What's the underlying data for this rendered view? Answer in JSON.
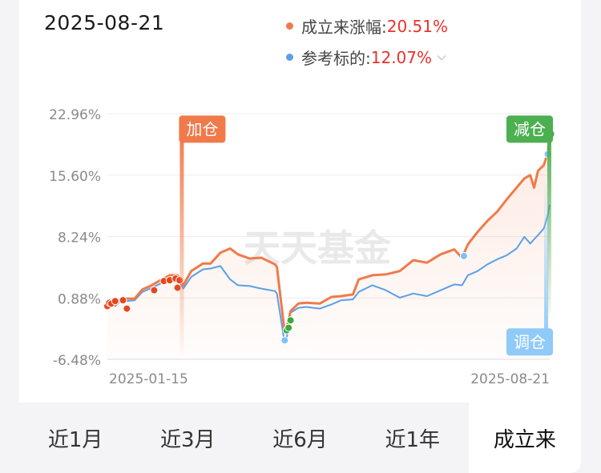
{
  "date": "2025-08-21",
  "legend": [
    {
      "label": "成立来涨幅:",
      "value": "20.51%",
      "color": "#f07a4a"
    },
    {
      "label": "参考标的:",
      "value": "12.07%",
      "color": "#5ba0e6"
    }
  ],
  "tabs": [
    "近1月",
    "近3月",
    "近6月",
    "近1年",
    "成立来"
  ],
  "active_tab": 4,
  "watermark": "天天基金",
  "colors": {
    "fund": "#f07a4a",
    "benchmark": "#5ba0e6",
    "add": "#f07a4a",
    "reduce": "#4caf50",
    "adjust": "#90caf9",
    "value_text": "#e8322d"
  },
  "chart_data": {
    "type": "line",
    "x_start": "2025-01-06",
    "x_end": "2025-08-21",
    "x_tick_labels": [
      "2025-01-15",
      "2025-08-21"
    ],
    "y_ticks": [
      "22.96%",
      "15.60%",
      "8.24%",
      "0.88%",
      "-6.48%"
    ],
    "ylim": [
      -6.48,
      22.96
    ],
    "grid": true,
    "series": [
      {
        "name": "成立来涨幅",
        "color": "#f07a4a",
        "points": [
          [
            "2025-01-06",
            -0.2
          ],
          [
            "2025-01-08",
            0.3
          ],
          [
            "2025-01-10",
            0.0
          ],
          [
            "2025-01-13",
            0.8
          ],
          [
            "2025-01-16",
            0.8
          ],
          [
            "2025-01-20",
            0.8
          ],
          [
            "2025-01-24",
            1.9
          ],
          [
            "2025-01-28",
            2.3
          ],
          [
            "2025-02-03",
            3.1
          ],
          [
            "2025-02-07",
            3.6
          ],
          [
            "2025-02-11",
            3.6
          ],
          [
            "2025-02-14",
            2.4
          ],
          [
            "2025-02-18",
            4.1
          ],
          [
            "2025-02-24",
            5.0
          ],
          [
            "2025-02-28",
            5.0
          ],
          [
            "2025-03-05",
            6.3
          ],
          [
            "2025-03-10",
            6.8
          ],
          [
            "2025-03-14",
            6.1
          ],
          [
            "2025-03-20",
            5.6
          ],
          [
            "2025-03-26",
            5.7
          ],
          [
            "2025-04-02",
            4.9
          ],
          [
            "2025-04-03",
            4.6
          ],
          [
            "2025-04-07",
            -3.3
          ],
          [
            "2025-04-08",
            -2.8
          ],
          [
            "2025-04-10",
            -0.7
          ],
          [
            "2025-04-14",
            0.2
          ],
          [
            "2025-04-18",
            0.3
          ],
          [
            "2025-04-25",
            0.2
          ],
          [
            "2025-05-01",
            1.0
          ],
          [
            "2025-05-06",
            1.1
          ],
          [
            "2025-05-12",
            1.3
          ],
          [
            "2025-05-15",
            3.1
          ],
          [
            "2025-05-22",
            3.6
          ],
          [
            "2025-05-29",
            3.7
          ],
          [
            "2025-06-05",
            4.1
          ],
          [
            "2025-06-12",
            5.4
          ],
          [
            "2025-06-19",
            5.1
          ],
          [
            "2025-06-26",
            6.1
          ],
          [
            "2025-07-03",
            6.7
          ],
          [
            "2025-07-07",
            5.7
          ],
          [
            "2025-07-10",
            7.3
          ],
          [
            "2025-07-15",
            8.8
          ],
          [
            "2025-07-20",
            10.1
          ],
          [
            "2025-07-25",
            11.2
          ],
          [
            "2025-07-30",
            12.7
          ],
          [
            "2025-08-04",
            14.1
          ],
          [
            "2025-08-08",
            15.2
          ],
          [
            "2025-08-11",
            15.6
          ],
          [
            "2025-08-13",
            14.1
          ],
          [
            "2025-08-15",
            16.1
          ],
          [
            "2025-08-18",
            16.8
          ],
          [
            "2025-08-20",
            18.3
          ],
          [
            "2025-08-21",
            20.51
          ]
        ]
      },
      {
        "name": "参考标的",
        "color": "#5ba0e6",
        "points": [
          [
            "2025-01-06",
            -0.2
          ],
          [
            "2025-01-08",
            0.2
          ],
          [
            "2025-01-10",
            -0.1
          ],
          [
            "2025-01-13",
            0.6
          ],
          [
            "2025-01-16",
            0.5
          ],
          [
            "2025-01-20",
            0.6
          ],
          [
            "2025-01-24",
            1.6
          ],
          [
            "2025-01-28",
            2.0
          ],
          [
            "2025-02-03",
            2.7
          ],
          [
            "2025-02-07",
            3.3
          ],
          [
            "2025-02-11",
            3.3
          ],
          [
            "2025-02-14",
            2.0
          ],
          [
            "2025-02-18",
            3.4
          ],
          [
            "2025-02-24",
            4.3
          ],
          [
            "2025-02-28",
            4.4
          ],
          [
            "2025-03-05",
            4.7
          ],
          [
            "2025-03-10",
            3.1
          ],
          [
            "2025-03-14",
            2.4
          ],
          [
            "2025-03-20",
            2.3
          ],
          [
            "2025-03-26",
            2.0
          ],
          [
            "2025-04-02",
            1.7
          ],
          [
            "2025-04-03",
            1.4
          ],
          [
            "2025-04-07",
            -4.6
          ],
          [
            "2025-04-08",
            -4.0
          ],
          [
            "2025-04-10",
            -0.9
          ],
          [
            "2025-04-14",
            -0.3
          ],
          [
            "2025-04-18",
            -0.2
          ],
          [
            "2025-04-25",
            -0.4
          ],
          [
            "2025-05-01",
            0.1
          ],
          [
            "2025-05-06",
            0.6
          ],
          [
            "2025-05-12",
            0.7
          ],
          [
            "2025-05-15",
            1.6
          ],
          [
            "2025-05-22",
            2.4
          ],
          [
            "2025-05-29",
            1.8
          ],
          [
            "2025-06-05",
            0.9
          ],
          [
            "2025-06-12",
            1.4
          ],
          [
            "2025-06-19",
            1.1
          ],
          [
            "2025-06-26",
            1.8
          ],
          [
            "2025-07-03",
            2.5
          ],
          [
            "2025-07-07",
            2.4
          ],
          [
            "2025-07-10",
            3.6
          ],
          [
            "2025-07-15",
            4.1
          ],
          [
            "2025-07-20",
            4.9
          ],
          [
            "2025-07-25",
            5.5
          ],
          [
            "2025-07-30",
            6.0
          ],
          [
            "2025-08-04",
            6.8
          ],
          [
            "2025-08-08",
            8.2
          ],
          [
            "2025-08-11",
            7.4
          ],
          [
            "2025-08-13",
            7.9
          ],
          [
            "2025-08-15",
            8.4
          ],
          [
            "2025-08-18",
            9.2
          ],
          [
            "2025-08-20",
            10.8
          ],
          [
            "2025-08-21",
            12.07
          ]
        ]
      }
    ],
    "markers": [
      {
        "kind": "add",
        "color": "#e8461e",
        "points": [
          [
            "2025-01-06",
            -0.1
          ],
          [
            "2025-01-07",
            0.3
          ],
          [
            "2025-01-08",
            0.2
          ],
          [
            "2025-01-10",
            0.5
          ],
          [
            "2025-01-14",
            0.6
          ],
          [
            "2025-01-16",
            -0.4
          ],
          [
            "2025-01-30",
            1.8
          ],
          [
            "2025-02-04",
            2.9
          ],
          [
            "2025-02-07",
            3.0
          ],
          [
            "2025-02-10",
            3.2
          ],
          [
            "2025-02-11",
            2.1
          ],
          [
            "2025-02-12",
            3.0
          ]
        ]
      },
      {
        "kind": "reduce",
        "color": "#3aa83a",
        "points": [
          [
            "2025-04-08",
            -3.0
          ],
          [
            "2025-04-09",
            -2.7
          ],
          [
            "2025-04-10",
            -1.8
          ],
          [
            "2025-08-21",
            20.51
          ]
        ]
      },
      {
        "kind": "adjust",
        "color": "#7fc2f5",
        "points": [
          [
            "2025-04-07",
            -4.2
          ],
          [
            "2025-07-08",
            5.9
          ],
          [
            "2025-08-20",
            18.1
          ]
        ]
      }
    ],
    "annotations": [
      {
        "text": "加仓",
        "date": "2025-02-13",
        "value": 21.1,
        "color": "#f07a4a"
      },
      {
        "text": "减仓",
        "date": "2025-08-21",
        "value": 21.1,
        "color": "#4caf50"
      },
      {
        "text": "调仓",
        "date": "2025-08-21",
        "value": -4.4,
        "color": "#90caf9"
      }
    ]
  }
}
